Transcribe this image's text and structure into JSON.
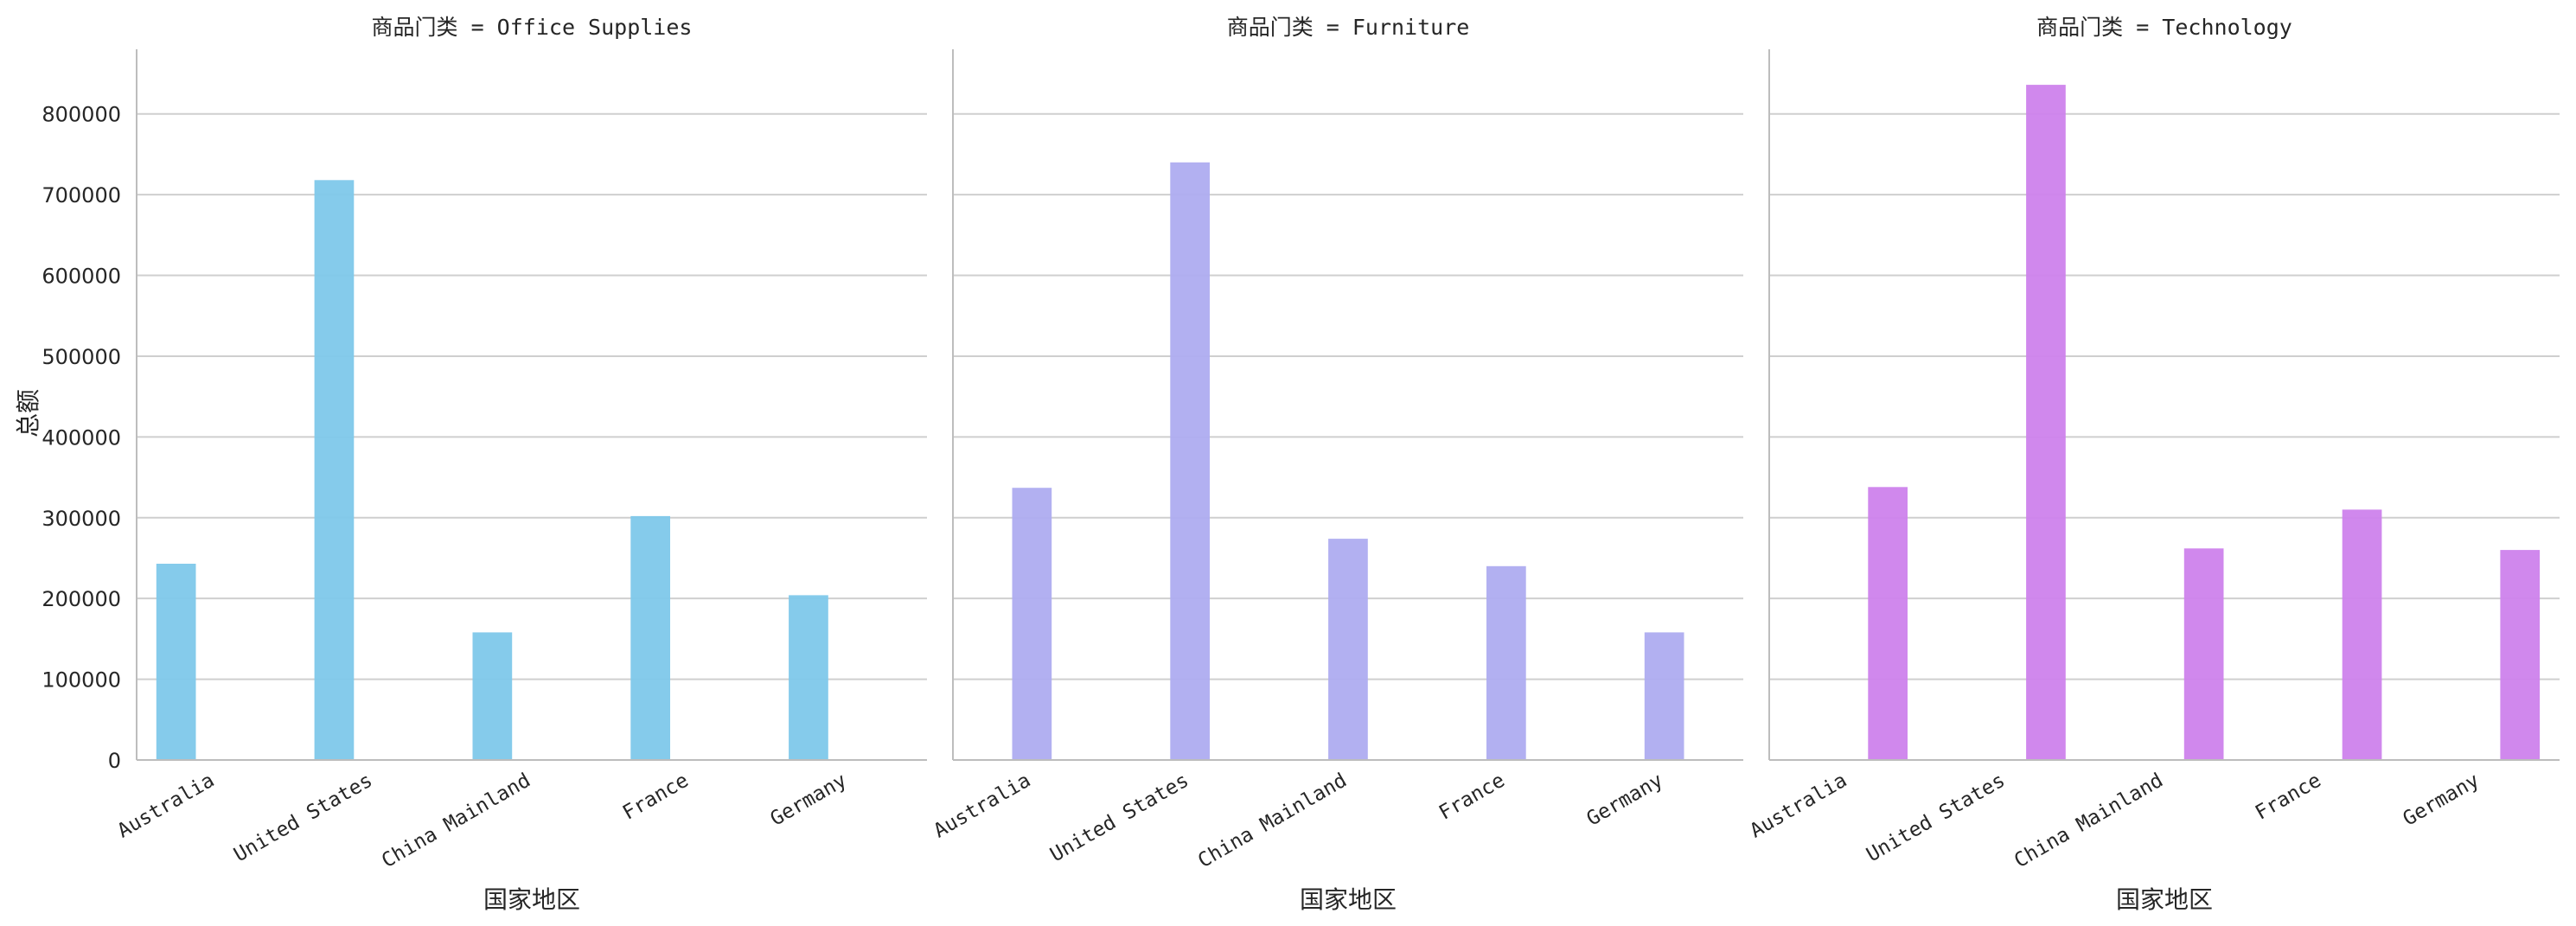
{
  "chart_data": {
    "type": "bar",
    "layout": "facet-columns",
    "ylabel": "总额",
    "xlabel": "国家地区",
    "categories": [
      "Australia",
      "United States",
      "China Mainland",
      "France",
      "Germany"
    ],
    "ylim": [
      0,
      880000
    ],
    "yticks": [
      0,
      100000,
      200000,
      300000,
      400000,
      500000,
      600000,
      700000,
      800000
    ],
    "ytick_labels": [
      "0",
      "100000",
      "200000",
      "300000",
      "400000",
      "500000",
      "600000",
      "700000",
      "800000"
    ],
    "grid": "horizontal",
    "panels": [
      {
        "title": "商品门类 = Office Supplies",
        "color": "#7ec8ea",
        "hue_slot": 0,
        "values": [
          243000,
          718000,
          158000,
          302000,
          204000
        ]
      },
      {
        "title": "商品门类 = Furniture",
        "color": "#aeacf0",
        "hue_slot": 1,
        "values": [
          337000,
          740000,
          274000,
          240000,
          158000
        ]
      },
      {
        "title": "商品门类 = Technology",
        "color": "#ce82ec",
        "hue_slot": 2,
        "values": [
          338000,
          836000,
          262000,
          310000,
          260000
        ]
      }
    ]
  }
}
